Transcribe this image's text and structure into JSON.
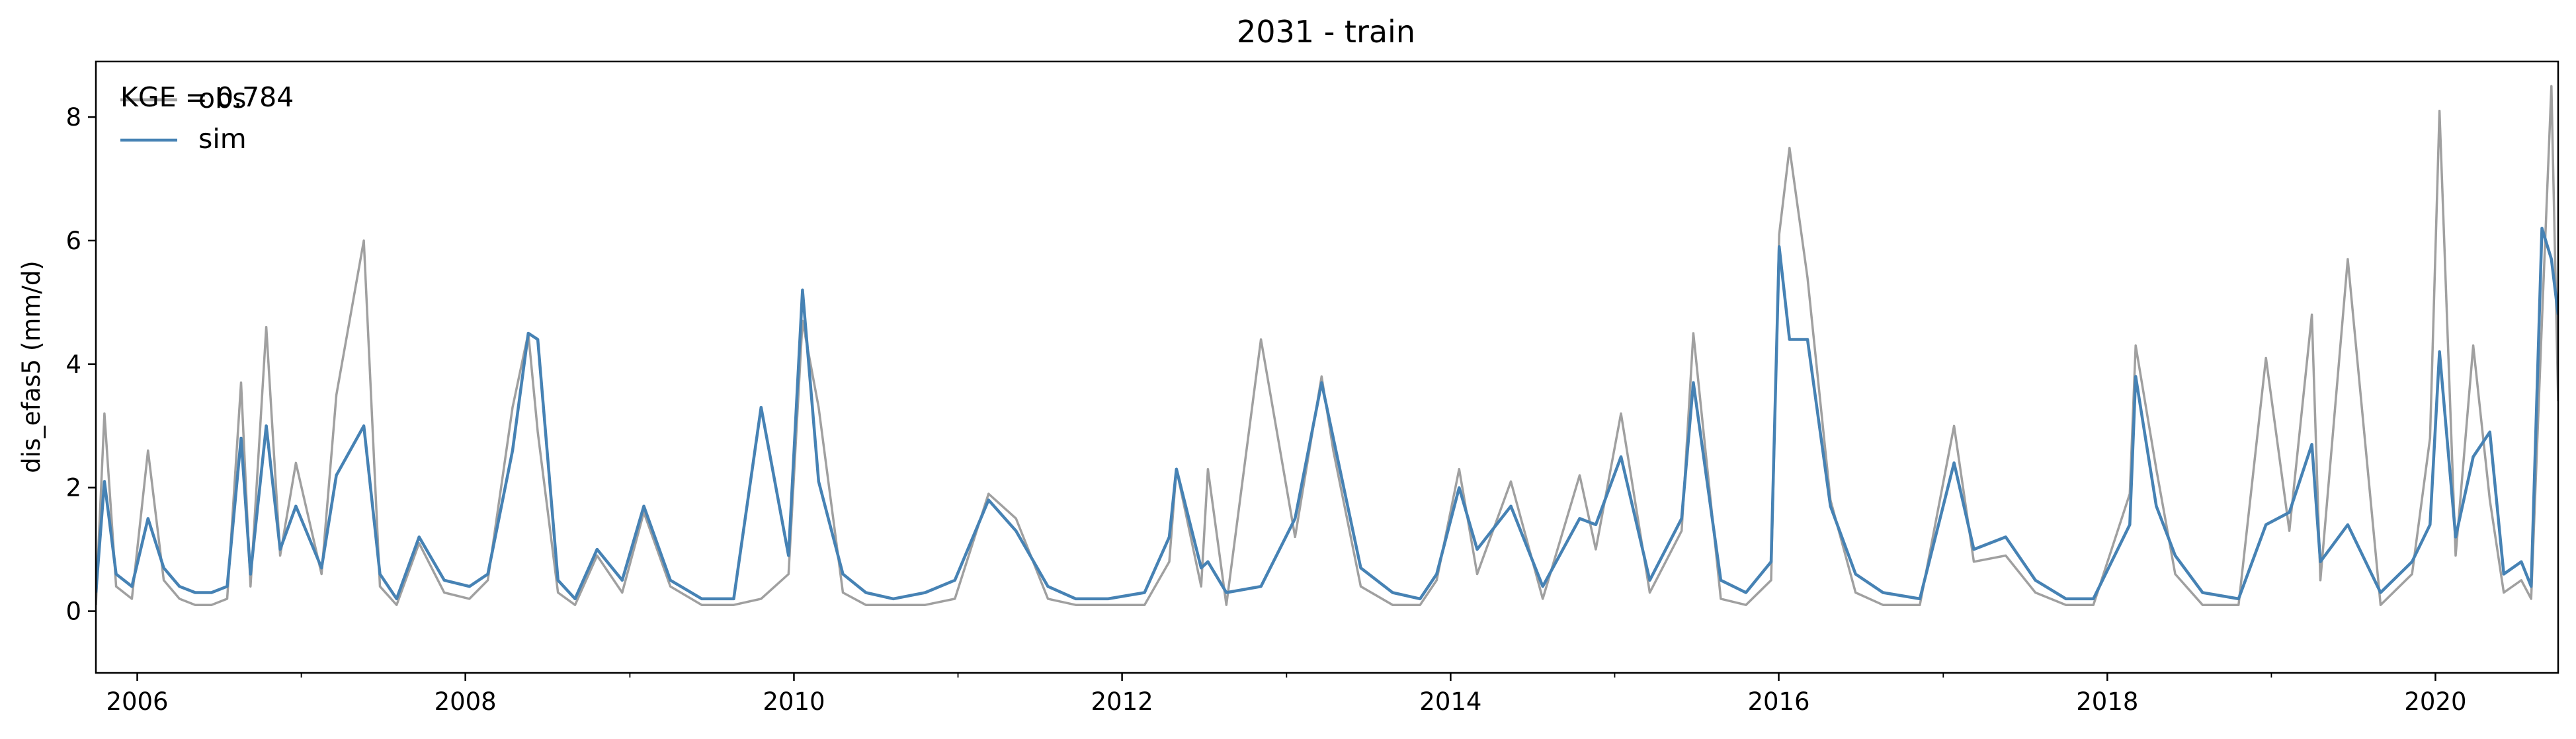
{
  "chart_data": {
    "type": "line",
    "title": "2031 - train",
    "xlabel": "",
    "ylabel": "dis_efas5 (mm/d)",
    "xlim": [
      "2005-10-01",
      "2020-09-30"
    ],
    "ylim": [
      -1,
      8.9
    ],
    "x_tick_labels": [
      "2006",
      "2008",
      "2010",
      "2012",
      "2014",
      "2016",
      "2018",
      "2020"
    ],
    "y_tick_labels": [
      "0",
      "2",
      "4",
      "6",
      "8"
    ],
    "legend": {
      "position": "top-left",
      "entries": [
        "obs",
        "sim"
      ]
    },
    "annotation": "KGE = 0.784",
    "grid": false,
    "colors": {
      "obs": "#a0a0a0",
      "sim": "#4682b4"
    },
    "series": [
      {
        "name": "obs",
        "x": [
          "2005-10-01",
          "2005-10-20",
          "2005-11-15",
          "2005-12-20",
          "2006-01-25",
          "2006-03-01",
          "2006-04-05",
          "2006-05-10",
          "2006-06-15",
          "2006-07-20",
          "2006-08-20",
          "2006-09-10",
          "2006-10-15",
          "2006-11-15",
          "2006-12-20",
          "2007-02-15",
          "2007-03-20",
          "2007-05-20",
          "2007-06-25",
          "2007-08-01",
          "2007-09-20",
          "2007-11-15",
          "2008-01-10",
          "2008-02-20",
          "2008-04-15",
          "2008-05-20",
          "2008-06-10",
          "2008-07-25",
          "2008-09-01",
          "2008-10-20",
          "2008-12-15",
          "2009-02-01",
          "2009-04-01",
          "2009-06-10",
          "2009-08-20",
          "2009-10-20",
          "2009-12-20",
          "2010-01-20",
          "2010-02-25",
          "2010-04-20",
          "2010-06-10",
          "2010-08-10",
          "2010-10-20",
          "2010-12-25",
          "2011-03-10",
          "2011-05-10",
          "2011-07-20",
          "2011-09-20",
          "2011-12-01",
          "2012-02-20",
          "2012-04-15",
          "2012-05-01",
          "2012-06-25",
          "2012-07-10",
          "2012-08-20",
          "2012-11-05",
          "2013-01-20",
          "2013-03-20",
          "2013-04-15",
          "2013-06-15",
          "2013-08-25",
          "2013-10-25",
          "2013-12-01",
          "2014-01-20",
          "2014-03-01",
          "2014-05-15",
          "2014-07-25",
          "2014-10-15",
          "2014-11-20",
          "2015-01-15",
          "2015-03-20",
          "2015-05-30",
          "2015-06-25",
          "2015-08-25",
          "2015-10-20",
          "2015-12-15",
          "2016-01-02",
          "2016-01-25",
          "2016-03-05",
          "2016-04-25",
          "2016-06-20",
          "2016-08-20",
          "2016-11-10",
          "2017-01-25",
          "2017-03-10",
          "2017-05-20",
          "2017-07-25",
          "2017-10-01",
          "2017-12-01",
          "2018-02-20",
          "2018-03-05",
          "2018-04-20",
          "2018-06-01",
          "2018-08-01",
          "2018-10-20",
          "2018-12-20",
          "2019-02-10",
          "2019-04-01",
          "2019-04-20",
          "2019-06-20",
          "2019-09-01",
          "2019-11-10",
          "2019-12-20",
          "2020-01-10",
          "2020-02-15",
          "2020-03-25",
          "2020-05-01",
          "2020-06-01",
          "2020-07-10",
          "2020-08-01",
          "2020-08-25",
          "2020-09-15",
          "2020-09-30"
        ],
        "y": [
          0.1,
          3.2,
          0.4,
          0.2,
          2.6,
          0.5,
          0.2,
          0.1,
          0.1,
          0.2,
          3.7,
          0.4,
          4.6,
          0.9,
          2.4,
          0.6,
          3.5,
          6.0,
          0.4,
          0.1,
          1.1,
          0.3,
          0.2,
          0.5,
          3.3,
          4.5,
          2.9,
          0.3,
          0.1,
          0.9,
          0.3,
          1.6,
          0.4,
          0.1,
          0.1,
          0.2,
          0.6,
          4.7,
          3.3,
          0.3,
          0.1,
          0.1,
          0.1,
          0.2,
          1.9,
          1.5,
          0.2,
          0.1,
          0.1,
          0.1,
          0.8,
          2.3,
          0.4,
          2.3,
          0.1,
          4.4,
          1.2,
          3.8,
          2.6,
          0.4,
          0.1,
          0.1,
          0.5,
          2.3,
          0.6,
          2.1,
          0.2,
          2.2,
          1.0,
          3.2,
          0.3,
          1.3,
          4.5,
          0.2,
          0.1,
          0.5,
          6.1,
          7.5,
          5.4,
          1.8,
          0.3,
          0.1,
          0.1,
          3.0,
          0.8,
          0.9,
          0.3,
          0.1,
          0.1,
          1.9,
          4.3,
          2.3,
          0.6,
          0.1,
          0.1,
          4.1,
          1.3,
          4.8,
          0.5,
          5.7,
          0.1,
          0.6,
          2.8,
          8.1,
          0.9,
          4.3,
          1.8,
          0.3,
          0.5,
          0.2,
          4.7,
          8.5,
          3.4
        ]
      },
      {
        "name": "sim",
        "x": [
          "2005-10-01",
          "2005-10-20",
          "2005-11-15",
          "2005-12-20",
          "2006-01-25",
          "2006-03-01",
          "2006-04-05",
          "2006-05-10",
          "2006-06-15",
          "2006-07-20",
          "2006-08-20",
          "2006-09-10",
          "2006-10-15",
          "2006-11-15",
          "2006-12-20",
          "2007-02-15",
          "2007-03-20",
          "2007-05-20",
          "2007-06-25",
          "2007-08-01",
          "2007-09-20",
          "2007-11-15",
          "2008-01-10",
          "2008-02-20",
          "2008-04-15",
          "2008-05-20",
          "2008-06-10",
          "2008-07-25",
          "2008-09-01",
          "2008-10-20",
          "2008-12-15",
          "2009-02-01",
          "2009-04-01",
          "2009-06-10",
          "2009-08-20",
          "2009-10-20",
          "2009-12-20",
          "2010-01-20",
          "2010-02-25",
          "2010-04-20",
          "2010-06-10",
          "2010-08-10",
          "2010-10-20",
          "2010-12-25",
          "2011-03-10",
          "2011-05-10",
          "2011-07-20",
          "2011-09-20",
          "2011-12-01",
          "2012-02-20",
          "2012-04-15",
          "2012-05-01",
          "2012-06-25",
          "2012-07-10",
          "2012-08-20",
          "2012-11-05",
          "2013-01-20",
          "2013-03-20",
          "2013-04-15",
          "2013-06-15",
          "2013-08-25",
          "2013-10-25",
          "2013-12-01",
          "2014-01-20",
          "2014-03-01",
          "2014-05-15",
          "2014-07-25",
          "2014-10-15",
          "2014-11-20",
          "2015-01-15",
          "2015-03-20",
          "2015-05-30",
          "2015-06-25",
          "2015-08-25",
          "2015-10-20",
          "2015-12-15",
          "2016-01-02",
          "2016-01-25",
          "2016-03-05",
          "2016-04-25",
          "2016-06-20",
          "2016-08-20",
          "2016-11-10",
          "2017-01-25",
          "2017-03-10",
          "2017-05-20",
          "2017-07-25",
          "2017-10-01",
          "2017-12-01",
          "2018-02-20",
          "2018-03-05",
          "2018-04-20",
          "2018-06-01",
          "2018-08-01",
          "2018-10-20",
          "2018-12-20",
          "2019-02-10",
          "2019-04-01",
          "2019-04-20",
          "2019-06-20",
          "2019-09-01",
          "2019-11-10",
          "2019-12-20",
          "2020-01-10",
          "2020-02-15",
          "2020-03-25",
          "2020-05-01",
          "2020-06-01",
          "2020-07-10",
          "2020-08-01",
          "2020-08-25",
          "2020-09-15",
          "2020-09-30"
        ],
        "y": [
          0.3,
          2.1,
          0.6,
          0.4,
          1.5,
          0.7,
          0.4,
          0.3,
          0.3,
          0.4,
          2.8,
          0.6,
          3.0,
          1.0,
          1.7,
          0.7,
          2.2,
          3.0,
          0.6,
          0.2,
          1.2,
          0.5,
          0.4,
          0.6,
          2.6,
          4.5,
          4.4,
          0.5,
          0.2,
          1.0,
          0.5,
          1.7,
          0.5,
          0.2,
          0.2,
          3.3,
          0.9,
          5.2,
          2.1,
          0.6,
          0.3,
          0.2,
          0.3,
          0.5,
          1.8,
          1.3,
          0.4,
          0.2,
          0.2,
          0.3,
          1.2,
          2.3,
          0.7,
          0.8,
          0.3,
          0.4,
          1.5,
          3.7,
          2.8,
          0.7,
          0.3,
          0.2,
          0.6,
          2.0,
          1.0,
          1.7,
          0.4,
          1.5,
          1.4,
          2.5,
          0.5,
          1.5,
          3.7,
          0.5,
          0.3,
          0.8,
          5.9,
          4.4,
          4.4,
          1.7,
          0.6,
          0.3,
          0.2,
          2.4,
          1.0,
          1.2,
          0.5,
          0.2,
          0.2,
          1.4,
          3.8,
          1.7,
          0.9,
          0.3,
          0.2,
          1.4,
          1.6,
          2.7,
          0.8,
          1.4,
          0.3,
          0.8,
          1.4,
          4.2,
          1.2,
          2.5,
          2.9,
          0.6,
          0.8,
          0.4,
          6.2,
          5.7,
          4.8
        ]
      }
    ]
  }
}
